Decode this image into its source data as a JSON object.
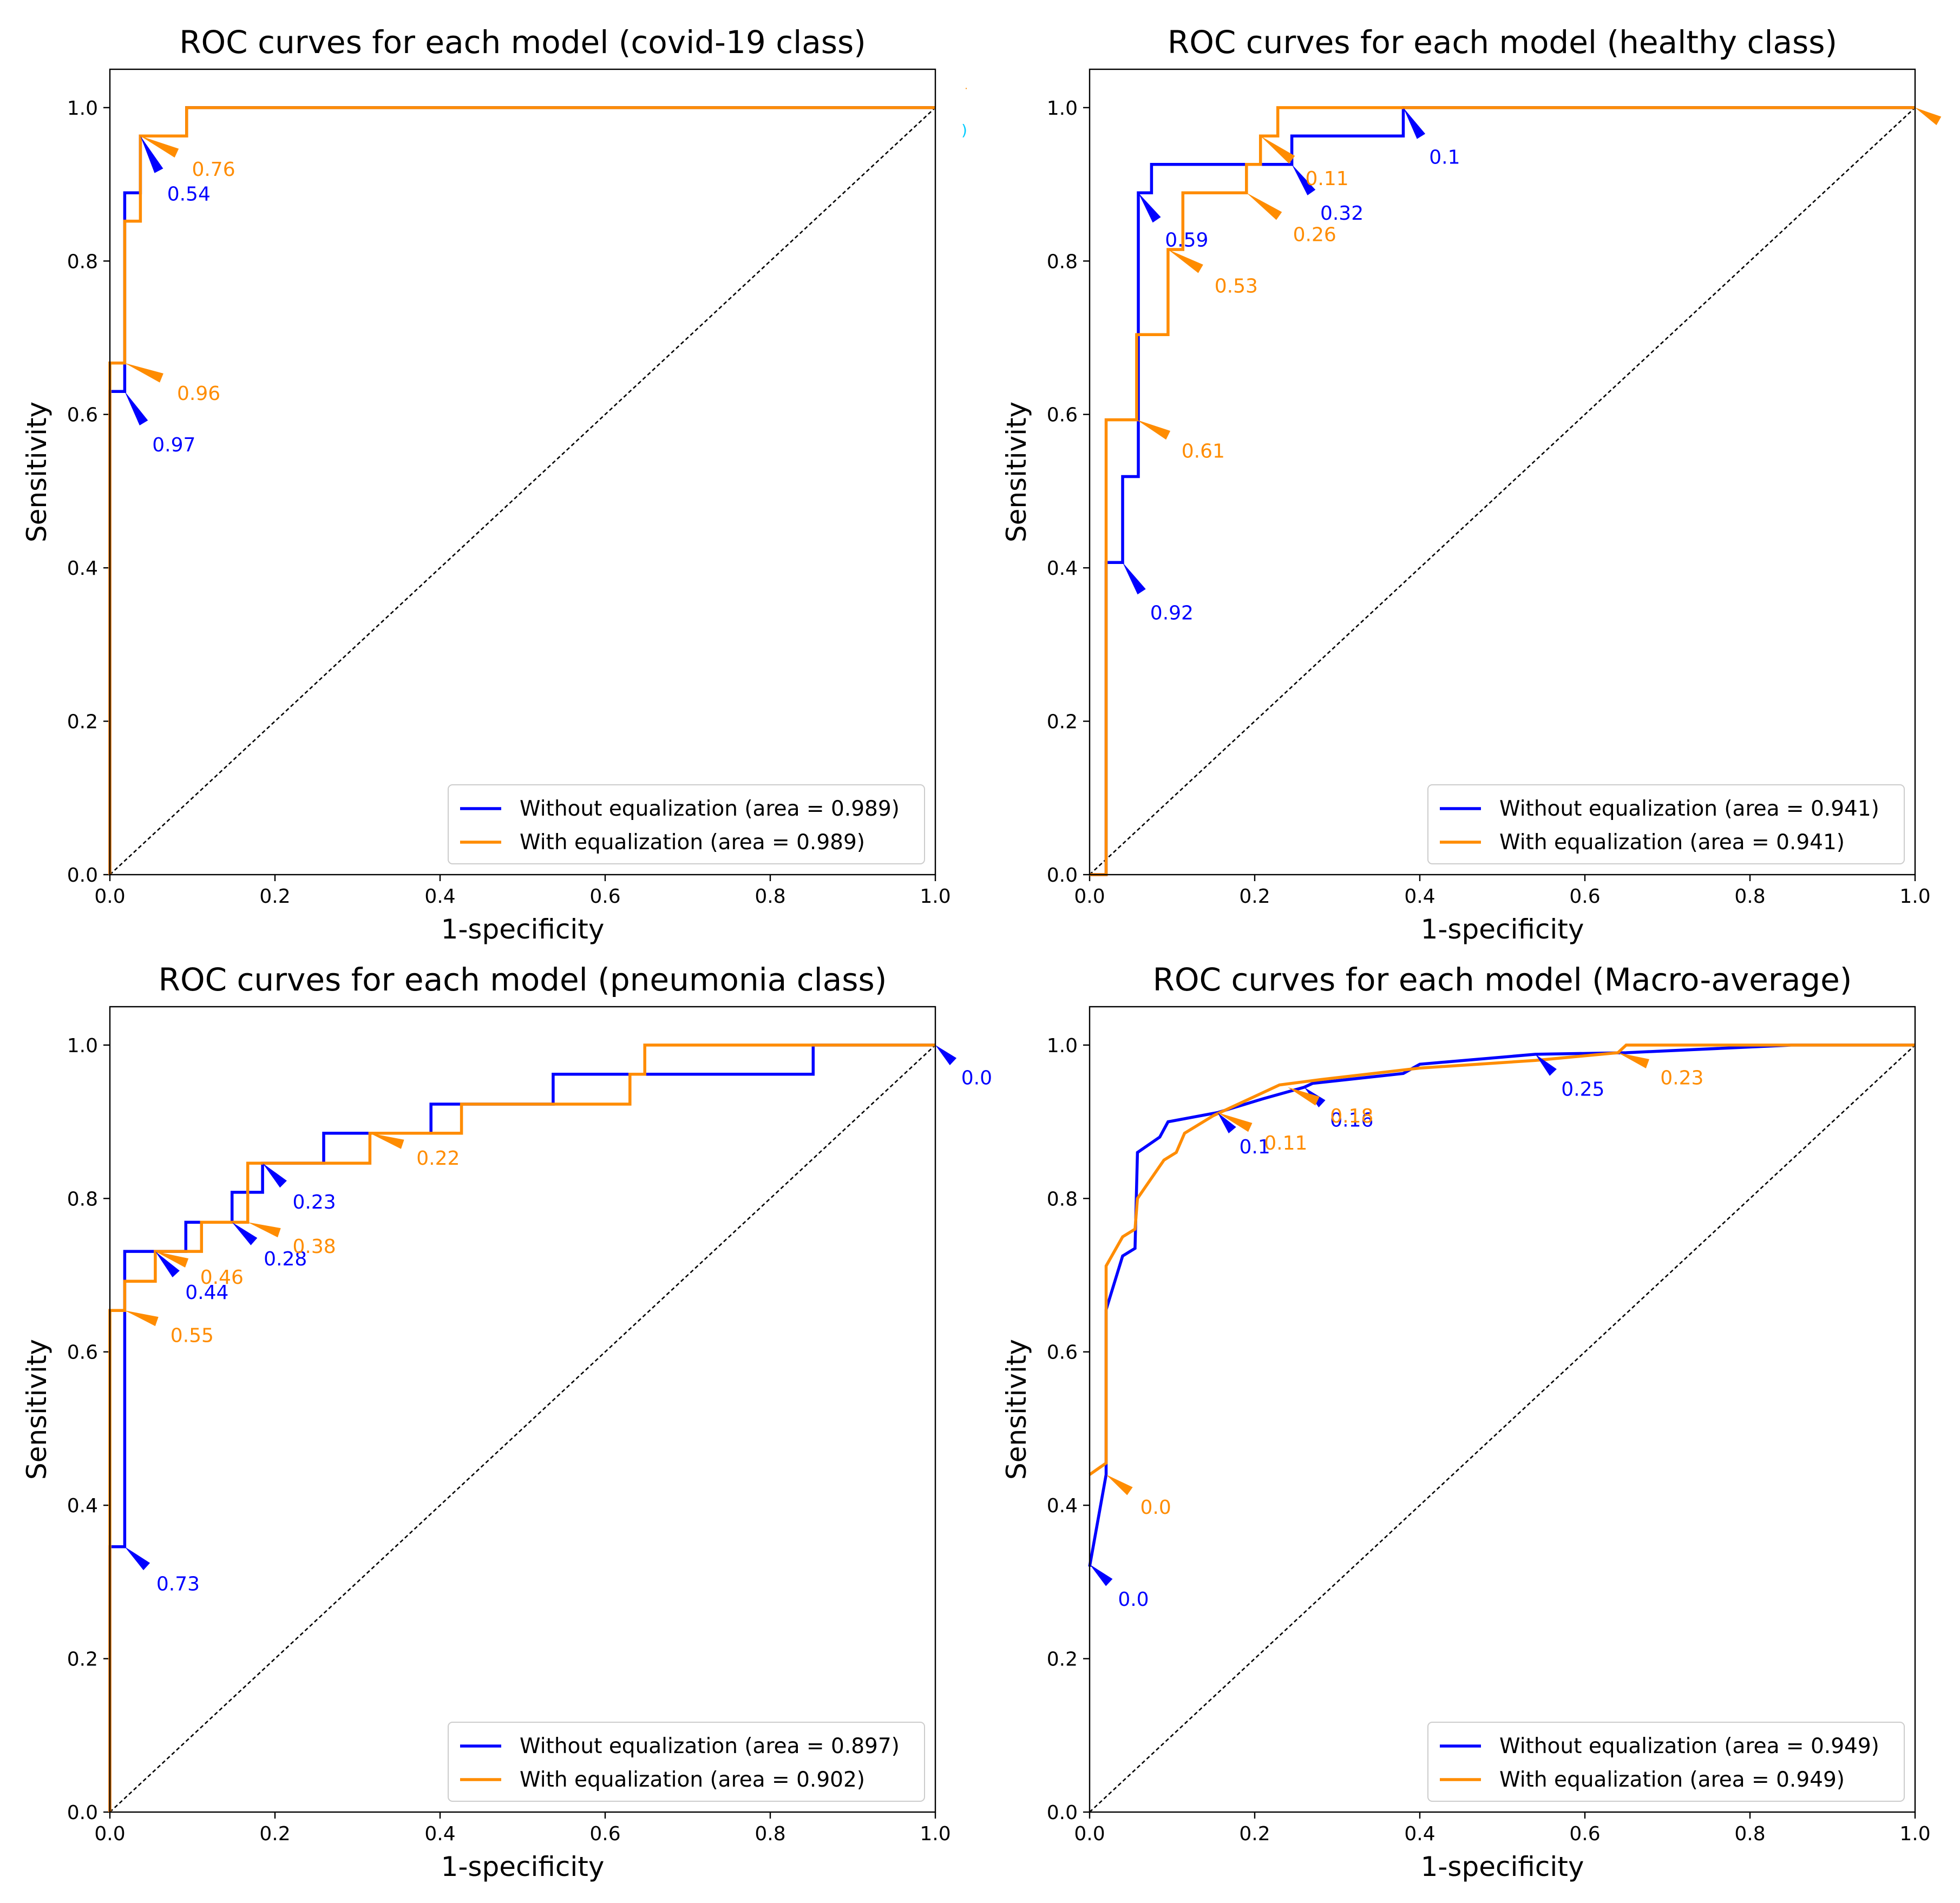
{
  "colors": {
    "without": "#0000ff",
    "with": "#ff8c00",
    "diagonal": "#000000"
  },
  "axes_labels": {
    "x": "1-specificity",
    "y": "Sensitivity"
  },
  "ticks": [
    "0.0",
    "0.2",
    "0.4",
    "0.6",
    "0.8",
    "1.0"
  ],
  "chart_data": [
    {
      "type": "line",
      "title": "ROC curves for each model (covid-19 class)",
      "xlabel": "1-specificity",
      "ylabel": "Sensitivity",
      "xlim": [
        0,
        1
      ],
      "ylim": [
        0,
        1.05
      ],
      "legend_position": "lower-right",
      "series": [
        {
          "name": "Without equalization (area = 0.989)",
          "points": [
            [
              0,
              0
            ],
            [
              0,
              0.63
            ],
            [
              0.018,
              0.63
            ],
            [
              0.018,
              0.889
            ],
            [
              0.037,
              0.889
            ],
            [
              0.037,
              0.963
            ],
            [
              0.093,
              0.963
            ],
            [
              0.093,
              1.0
            ],
            [
              1,
              1
            ]
          ],
          "annotations": [
            {
              "label": "0.54",
              "x": 0.037,
              "y": 0.963,
              "tx": 0.068,
              "ty": 0.9
            },
            {
              "label": "0.97",
              "x": 0.018,
              "y": 0.63,
              "tx": 0.05,
              "ty": 0.573
            }
          ]
        },
        {
          "name": "With equalization (area = 0.989)",
          "points": [
            [
              0,
              0
            ],
            [
              0,
              0.667
            ],
            [
              0.018,
              0.667
            ],
            [
              0.018,
              0.852
            ],
            [
              0.037,
              0.852
            ],
            [
              0.037,
              0.963
            ],
            [
              0.093,
              0.963
            ],
            [
              0.093,
              1.0
            ],
            [
              1,
              1
            ]
          ],
          "annotations": [
            {
              "label": "0.76",
              "x": 0.037,
              "y": 0.963,
              "tx": 0.098,
              "ty": 0.932
            },
            {
              "label": "0.96",
              "x": 0.018,
              "y": 0.667,
              "tx": 0.08,
              "ty": 0.64
            }
          ]
        }
      ]
    },
    {
      "type": "line",
      "title": "ROC curves for each model (healthy class)",
      "xlabel": "1-specificity",
      "ylabel": "Sensitivity",
      "xlim": [
        0,
        1
      ],
      "ylim": [
        0,
        1.05
      ],
      "legend_position": "lower-right",
      "series": [
        {
          "name": "Without equalization (area = 0.941)",
          "points": [
            [
              0,
              0
            ],
            [
              0.02,
              0
            ],
            [
              0.02,
              0.407
            ],
            [
              0.04,
              0.407
            ],
            [
              0.04,
              0.519
            ],
            [
              0.059,
              0.519
            ],
            [
              0.059,
              0.889
            ],
            [
              0.075,
              0.889
            ],
            [
              0.075,
              0.926
            ],
            [
              0.245,
              0.926
            ],
            [
              0.245,
              0.963
            ],
            [
              0.38,
              0.963
            ],
            [
              0.38,
              1.0
            ],
            [
              1,
              1
            ]
          ],
          "annotations": [
            {
              "label": "0.1",
              "x": 0.38,
              "y": 1.0,
              "tx": 0.41,
              "ty": 0.948
            },
            {
              "label": "0.32",
              "x": 0.245,
              "y": 0.926,
              "tx": 0.278,
              "ty": 0.875
            },
            {
              "label": "0.59",
              "x": 0.059,
              "y": 0.889,
              "tx": 0.09,
              "ty": 0.84
            },
            {
              "label": "0.92",
              "x": 0.04,
              "y": 0.407,
              "tx": 0.072,
              "ty": 0.354
            }
          ]
        },
        {
          "name": "With equalization (area = 0.941)",
          "points": [
            [
              0,
              0
            ],
            [
              0.02,
              0
            ],
            [
              0.02,
              0.593
            ],
            [
              0.057,
              0.593
            ],
            [
              0.057,
              0.704
            ],
            [
              0.095,
              0.704
            ],
            [
              0.095,
              0.815
            ],
            [
              0.113,
              0.815
            ],
            [
              0.113,
              0.889
            ],
            [
              0.19,
              0.889
            ],
            [
              0.19,
              0.926
            ],
            [
              0.207,
              0.926
            ],
            [
              0.207,
              0.963
            ],
            [
              0.228,
              0.963
            ],
            [
              0.228,
              1.0
            ],
            [
              1,
              1
            ]
          ],
          "annotations": [
            {
              "label": "0.11",
              "x": 0.207,
              "y": 0.963,
              "tx": 0.26,
              "ty": 0.92
            },
            {
              "label": "0.26",
              "x": 0.19,
              "y": 0.889,
              "tx": 0.245,
              "ty": 0.847
            },
            {
              "label": "0.53",
              "x": 0.095,
              "y": 0.815,
              "tx": 0.15,
              "ty": 0.78
            },
            {
              "label": "0.61",
              "x": 0.057,
              "y": 0.593,
              "tx": 0.11,
              "ty": 0.565
            },
            {
              "label": "",
              "x": 1.0,
              "y": 1.0,
              "tx": 1.04,
              "ty": 0.976
            }
          ]
        }
      ]
    },
    {
      "type": "line",
      "title": "ROC curves for each model (pneumonia class)",
      "xlabel": "1-specificity",
      "ylabel": "Sensitivity",
      "xlim": [
        0,
        1
      ],
      "ylim": [
        0,
        1.05
      ],
      "legend_position": "lower-right",
      "series": [
        {
          "name": "Without equalization (area = 0.897)",
          "points": [
            [
              0,
              0
            ],
            [
              0,
              0.346
            ],
            [
              0.018,
              0.346
            ],
            [
              0.018,
              0.731
            ],
            [
              0.092,
              0.731
            ],
            [
              0.092,
              0.769
            ],
            [
              0.148,
              0.769
            ],
            [
              0.148,
              0.808
            ],
            [
              0.185,
              0.808
            ],
            [
              0.185,
              0.846
            ],
            [
              0.259,
              0.846
            ],
            [
              0.259,
              0.885
            ],
            [
              0.389,
              0.885
            ],
            [
              0.389,
              0.923
            ],
            [
              0.537,
              0.923
            ],
            [
              0.537,
              0.962
            ],
            [
              0.852,
              0.962
            ],
            [
              0.852,
              1.0
            ],
            [
              1,
              1
            ]
          ],
          "annotations": [
            {
              "label": "0.0",
              "x": 1.0,
              "y": 1.0,
              "tx": 1.03,
              "ty": 0.97
            },
            {
              "label": "0.23",
              "x": 0.185,
              "y": 0.846,
              "tx": 0.22,
              "ty": 0.808
            },
            {
              "label": "0.28",
              "x": 0.148,
              "y": 0.769,
              "tx": 0.185,
              "ty": 0.734
            },
            {
              "label": "0.44",
              "x": 0.055,
              "y": 0.731,
              "tx": 0.09,
              "ty": 0.69
            },
            {
              "label": "0.73",
              "x": 0.018,
              "y": 0.346,
              "tx": 0.055,
              "ty": 0.31
            }
          ]
        },
        {
          "name": "With equalization (area = 0.902)",
          "points": [
            [
              0,
              0
            ],
            [
              0,
              0.654
            ],
            [
              0.018,
              0.654
            ],
            [
              0.018,
              0.692
            ],
            [
              0.055,
              0.692
            ],
            [
              0.055,
              0.731
            ],
            [
              0.111,
              0.731
            ],
            [
              0.111,
              0.769
            ],
            [
              0.167,
              0.769
            ],
            [
              0.167,
              0.846
            ],
            [
              0.315,
              0.846
            ],
            [
              0.315,
              0.885
            ],
            [
              0.426,
              0.885
            ],
            [
              0.426,
              0.923
            ],
            [
              0.63,
              0.923
            ],
            [
              0.63,
              0.962
            ],
            [
              0.648,
              0.962
            ],
            [
              0.648,
              1.0
            ],
            [
              1,
              1
            ]
          ],
          "annotations": [
            {
              "label": "0.22",
              "x": 0.315,
              "y": 0.885,
              "tx": 0.37,
              "ty": 0.865
            },
            {
              "label": "0.38",
              "x": 0.167,
              "y": 0.769,
              "tx": 0.22,
              "ty": 0.75
            },
            {
              "label": "0.46",
              "x": 0.055,
              "y": 0.731,
              "tx": 0.108,
              "ty": 0.71
            },
            {
              "label": "0.55",
              "x": 0.018,
              "y": 0.654,
              "tx": 0.072,
              "ty": 0.634
            }
          ]
        }
      ]
    },
    {
      "type": "line",
      "title": "ROC curves for each model (Macro-average)",
      "xlabel": "1-specificity",
      "ylabel": "Sensitivity",
      "xlim": [
        0,
        1
      ],
      "ylim": [
        0,
        1.05
      ],
      "legend_position": "lower-right",
      "series": [
        {
          "name": "Without equalization (area = 0.949)",
          "points": [
            [
              0,
              0.32
            ],
            [
              0.02,
              0.44
            ],
            [
              0.02,
              0.655
            ],
            [
              0.04,
              0.725
            ],
            [
              0.055,
              0.735
            ],
            [
              0.058,
              0.86
            ],
            [
              0.085,
              0.88
            ],
            [
              0.095,
              0.9
            ],
            [
              0.155,
              0.912
            ],
            [
              0.21,
              0.93
            ],
            [
              0.26,
              0.945
            ],
            [
              0.27,
              0.95
            ],
            [
              0.38,
              0.963
            ],
            [
              0.4,
              0.975
            ],
            [
              0.54,
              0.988
            ],
            [
              0.65,
              0.99
            ],
            [
              0.85,
              1.0
            ],
            [
              1,
              1
            ]
          ],
          "annotations": [
            {
              "label": "0.0",
              "x": 0.0,
              "y": 0.323,
              "tx": 0.033,
              "ty": 0.29
            },
            {
              "label": "0.1",
              "x": 0.155,
              "y": 0.912,
              "tx": 0.18,
              "ty": 0.88
            },
            {
              "label": "0.16",
              "x": 0.26,
              "y": 0.945,
              "tx": 0.29,
              "ty": 0.915
            },
            {
              "label": "0.25",
              "x": 0.54,
              "y": 0.988,
              "tx": 0.57,
              "ty": 0.955
            }
          ]
        },
        {
          "name": "With equalization (area = 0.949)",
          "points": [
            [
              0,
              0.44
            ],
            [
              0.02,
              0.455
            ],
            [
              0.02,
              0.712
            ],
            [
              0.04,
              0.75
            ],
            [
              0.055,
              0.76
            ],
            [
              0.058,
              0.8
            ],
            [
              0.09,
              0.85
            ],
            [
              0.105,
              0.86
            ],
            [
              0.115,
              0.885
            ],
            [
              0.15,
              0.908
            ],
            [
              0.23,
              0.948
            ],
            [
              0.28,
              0.955
            ],
            [
              0.4,
              0.97
            ],
            [
              0.54,
              0.98
            ],
            [
              0.64,
              0.99
            ],
            [
              0.65,
              1.0
            ],
            [
              1,
              1
            ]
          ],
          "annotations": [
            {
              "label": "0.0",
              "x": 0.02,
              "y": 0.44,
              "tx": 0.06,
              "ty": 0.41
            },
            {
              "label": "0.11",
              "x": 0.155,
              "y": 0.912,
              "tx": 0.21,
              "ty": 0.885
            },
            {
              "label": "0.18",
              "x": 0.24,
              "y": 0.945,
              "tx": 0.29,
              "ty": 0.92
            },
            {
              "label": "0.23",
              "x": 0.64,
              "y": 0.99,
              "tx": 0.69,
              "ty": 0.97
            }
          ]
        }
      ]
    }
  ]
}
